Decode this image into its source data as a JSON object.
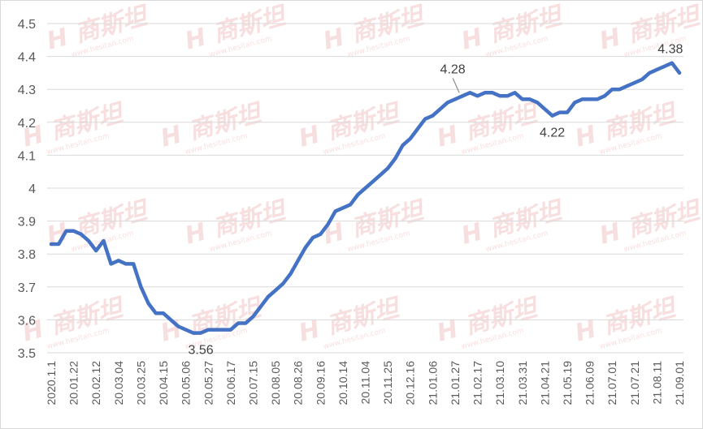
{
  "chart_data": {
    "type": "line",
    "title": "",
    "xlabel": "",
    "ylabel": "",
    "ylim": [
      3.5,
      4.5
    ],
    "yticks": [
      3.5,
      3.6,
      3.7,
      3.8,
      3.9,
      4.0,
      4.1,
      4.2,
      4.3,
      4.4,
      4.5
    ],
    "ytick_labels": [
      "3.5",
      "3.6",
      "3.7",
      "3.8",
      "3.9",
      "4",
      "4.1",
      "4.2",
      "4.3",
      "4.4",
      "4.5"
    ],
    "grid": "horizontal",
    "legend": "none",
    "x_tick_labels": [
      "2020.1.1",
      "20.01.22",
      "20.02.12",
      "20.03.04",
      "20.03.25",
      "20.04.15",
      "20.05.06",
      "20.05.27",
      "20.06.17",
      "20.07.15",
      "20.08.05",
      "20.08.26",
      "20.09.16",
      "20.10.14",
      "20.11.04",
      "20.11.25",
      "20.12.16",
      "21.01.06",
      "21.01.27",
      "21.02.17",
      "21.03.10",
      "21.03.31",
      "21.04.21",
      "21.05.19",
      "21.06.09",
      "21.07.01",
      "21.07.21",
      "21.08.11",
      "21.09.01"
    ],
    "series": [
      {
        "color": "#4472c4",
        "values": [
          3.83,
          3.83,
          3.87,
          3.87,
          3.86,
          3.84,
          3.81,
          3.84,
          3.77,
          3.78,
          3.77,
          3.77,
          3.7,
          3.65,
          3.62,
          3.62,
          3.6,
          3.58,
          3.57,
          3.56,
          3.56,
          3.57,
          3.57,
          3.57,
          3.57,
          3.59,
          3.59,
          3.61,
          3.64,
          3.67,
          3.69,
          3.71,
          3.74,
          3.78,
          3.82,
          3.85,
          3.86,
          3.89,
          3.93,
          3.94,
          3.95,
          3.98,
          4.0,
          4.02,
          4.04,
          4.06,
          4.09,
          4.13,
          4.15,
          4.18,
          4.21,
          4.22,
          4.24,
          4.26,
          4.27,
          4.28,
          4.29,
          4.28,
          4.29,
          4.29,
          4.28,
          4.28,
          4.29,
          4.27,
          4.27,
          4.26,
          4.24,
          4.22,
          4.23,
          4.23,
          4.26,
          4.27,
          4.27,
          4.27,
          4.28,
          4.3,
          4.3,
          4.31,
          4.32,
          4.33,
          4.35,
          4.36,
          4.37,
          4.38,
          4.35
        ]
      }
    ],
    "annotations": [
      {
        "text": "4.28",
        "index": 55,
        "value": 4.28
      },
      {
        "text": "4.22",
        "index": 67,
        "value": 4.22
      },
      {
        "text": "4.38",
        "index": 83,
        "value": 4.38
      },
      {
        "text": "3.56",
        "index": 20,
        "value": 3.56
      }
    ],
    "watermark": {
      "text": "H 商斯坦",
      "subtext": "www.hesitan.com",
      "color": "#f4c6c6"
    }
  }
}
